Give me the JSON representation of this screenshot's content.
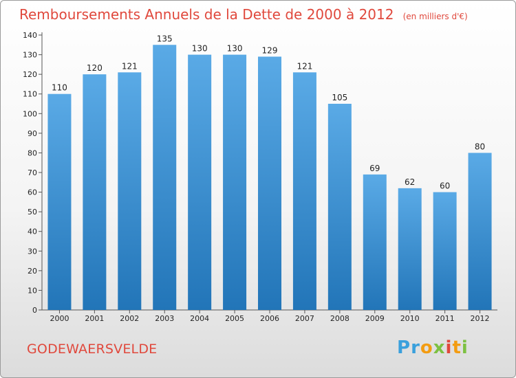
{
  "title": "Remboursements Annuels de la Dette de 2000 à 2012",
  "subtitle": "(en milliers d'€)",
  "footer": {
    "commune": "GODEWAERSVELDE",
    "brand_letters": [
      "P",
      "r",
      "o",
      "x",
      "i",
      "t",
      "i"
    ],
    "brand_colors": [
      "#3aa0dc",
      "#3aa0dc",
      "#f39c12",
      "#7dc142",
      "#e0483c",
      "#f39c12",
      "#7dc142"
    ]
  },
  "colors": {
    "bar_top": "#5aaae6",
    "bar_bottom": "#2275b8",
    "title": "#e0483c"
  },
  "chart_data": {
    "type": "bar",
    "categories": [
      "2000",
      "2001",
      "2002",
      "2003",
      "2004",
      "2005",
      "2006",
      "2007",
      "2008",
      "2009",
      "2010",
      "2011",
      "2012"
    ],
    "values": [
      110,
      120,
      121,
      135,
      130,
      130,
      129,
      121,
      105,
      69,
      62,
      60,
      80
    ],
    "ylim": [
      0,
      140
    ],
    "yticks": [
      0,
      10,
      20,
      30,
      40,
      50,
      60,
      70,
      80,
      90,
      100,
      110,
      120,
      130,
      140
    ],
    "grid": false,
    "data_labels": true
  }
}
